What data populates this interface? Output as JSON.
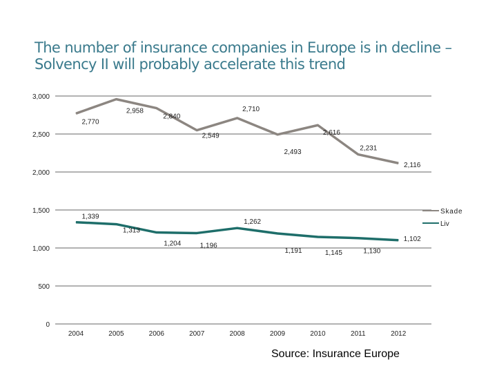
{
  "title": {
    "line1": "The number of insurance companies in Europe is in decline –",
    "line2": "Solvency II will probably accelerate this trend"
  },
  "source": "Source: Insurance Europe",
  "chart_data": {
    "type": "line",
    "categories": [
      "2004",
      "2005",
      "2006",
      "2007",
      "2008",
      "2009",
      "2010",
      "2011",
      "2012"
    ],
    "ylim": [
      0,
      3000
    ],
    "yticks": [
      0,
      500,
      1000,
      1500,
      2000,
      2500,
      3000
    ],
    "ytick_labels": [
      "0",
      "500",
      "1,000",
      "1,500",
      "2,000",
      "2,500",
      "3,000"
    ],
    "grid": true,
    "legend_position": "right",
    "series": [
      {
        "name": "Skade",
        "color": "#8c8681",
        "values": [
          2770,
          2958,
          2840,
          2549,
          2710,
          2493,
          2616,
          2231,
          2116
        ],
        "labels": [
          "2,770",
          "2,958",
          "2,840",
          "2,549",
          "2,710",
          "2,493",
          "2,616",
          "2,231",
          "2,116"
        ]
      },
      {
        "name": "Liv",
        "color": "#1e6e6a",
        "values": [
          1339,
          1313,
          1204,
          1196,
          1262,
          1191,
          1145,
          1130,
          1102
        ],
        "labels": [
          "1,339",
          "1,313",
          "1,204",
          "1,196",
          "1,262",
          "1,191",
          "1,145",
          "1,130",
          "1,102"
        ]
      }
    ]
  }
}
